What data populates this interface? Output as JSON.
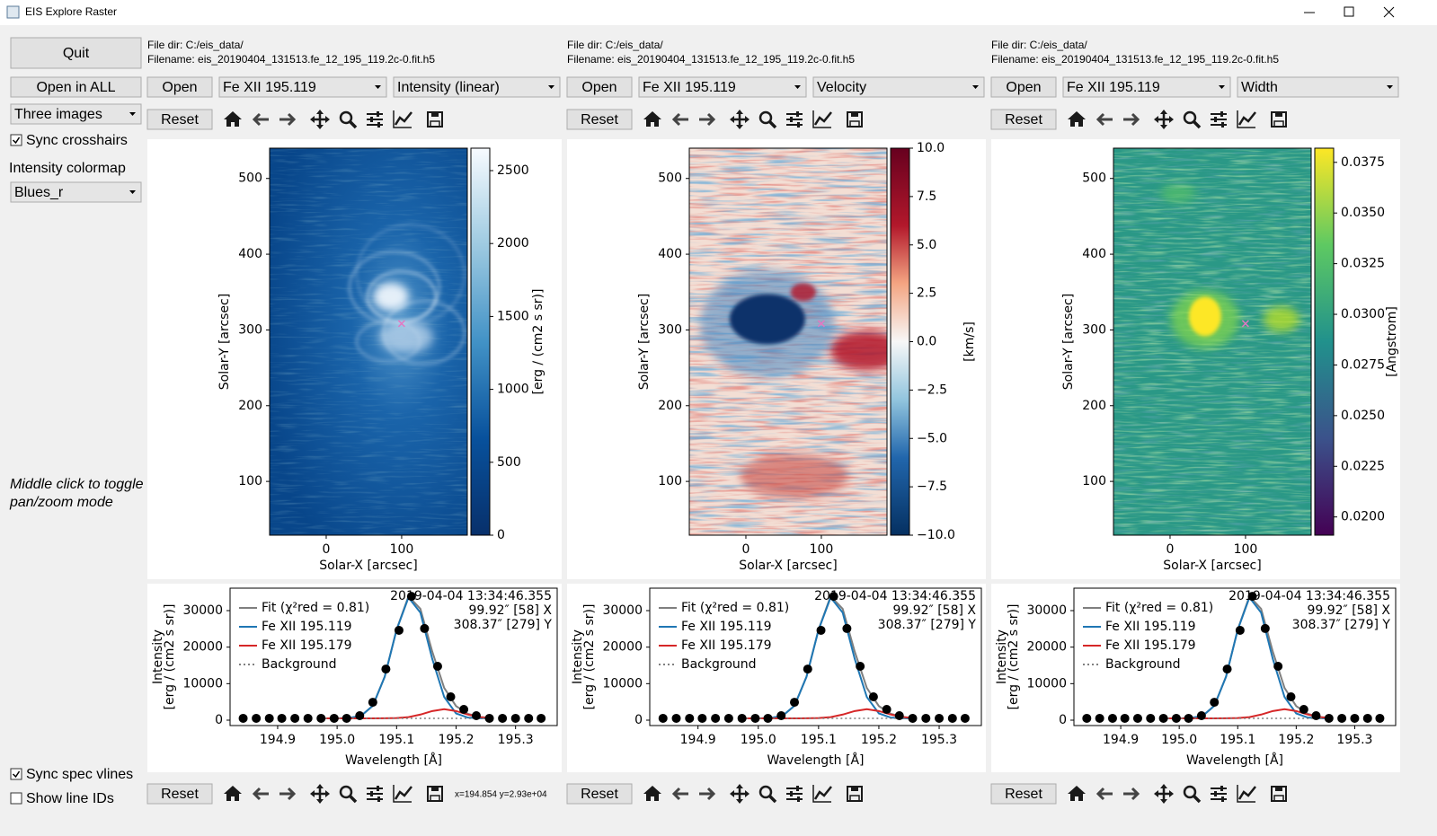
{
  "window": {
    "title": "EIS Explore Raster"
  },
  "sidebar": {
    "quit": "Quit",
    "open_all": "Open in ALL",
    "layout": "Three images",
    "sync_crosshairs": {
      "label": "Sync crosshairs",
      "checked": true
    },
    "colormap_label": "Intensity colormap",
    "colormap": "Blues_r",
    "hint": [
      "Middle click to toggle",
      "pan/zoom mode"
    ],
    "sync_spec": {
      "label": "Sync spec vlines",
      "checked": true
    },
    "line_ids": {
      "label": "Show line IDs",
      "checked": false
    }
  },
  "buttons": {
    "open": "Open",
    "reset": "Reset"
  },
  "status": "x=194.854 y=2.93e+04",
  "panels": [
    {
      "file_dir": "File dir: C:/eis_data/",
      "filename": "Filename: eis_20190404_131513.fe_12_195_119.2c-0.fit.h5",
      "line": "Fe XII 195.119",
      "measure": "Intensity (linear)"
    },
    {
      "file_dir": "File dir: C:/eis_data/",
      "filename": "Filename: eis_20190404_131513.fe_12_195_119.2c-0.fit.h5",
      "line": "Fe XII 195.119",
      "measure": "Velocity"
    },
    {
      "file_dir": "File dir: C:/eis_data/",
      "filename": "Filename: eis_20190404_131513.fe_12_195_119.2c-0.fit.h5",
      "line": "Fe XII 195.119",
      "measure": "Width"
    }
  ],
  "chart_data": [
    {
      "type": "image",
      "xlabel": "Solar-X [arcsec]",
      "ylabel": "Solar-Y [arcsec]",
      "xlim": [
        -75,
        187
      ],
      "ylim": [
        29,
        540
      ],
      "xticks": [
        0,
        100
      ],
      "yticks": [
        100,
        200,
        300,
        400,
        500
      ],
      "colormap": "Blues_r",
      "colorbar": {
        "label": "[erg / (cm2 s sr)]",
        "lim": [
          0,
          2654
        ],
        "ticks": [
          0,
          500,
          1000,
          1500,
          2000,
          2500
        ]
      },
      "crosshair": {
        "x": 99.92,
        "y": 308.37,
        "color": "#e377c2"
      }
    },
    {
      "type": "image",
      "xlabel": "Solar-X [arcsec]",
      "ylabel": "Solar-Y [arcsec]",
      "xlim": [
        -75,
        187
      ],
      "ylim": [
        29,
        540
      ],
      "xticks": [
        0,
        100
      ],
      "yticks": [
        100,
        200,
        300,
        400,
        500
      ],
      "colormap": "RdBu_r",
      "colorbar": {
        "label": "[km/s]",
        "lim": [
          -10,
          10
        ],
        "ticks": [
          {
            "value": 10,
            "label": "10.0"
          },
          {
            "value": 7.5,
            "label": "7.5"
          },
          {
            "value": 5,
            "label": "5.0"
          },
          {
            "value": 2.5,
            "label": "2.5"
          },
          {
            "value": 0,
            "label": "0.0"
          },
          {
            "value": -2.5,
            "label": "−2.5"
          },
          {
            "value": -5,
            "label": "−5.0"
          },
          {
            "value": -7.5,
            "label": "−7.5"
          },
          {
            "value": -10,
            "label": "−10.0"
          }
        ]
      },
      "crosshair": {
        "x": 99.92,
        "y": 308.37,
        "color": "#e377c2"
      }
    },
    {
      "type": "image",
      "xlabel": "Solar-X [arcsec]",
      "ylabel": "Solar-Y [arcsec]",
      "xlim": [
        -75,
        187
      ],
      "ylim": [
        29,
        540
      ],
      "xticks": [
        0,
        100
      ],
      "yticks": [
        100,
        200,
        300,
        400,
        500
      ],
      "colormap": "viridis",
      "colorbar": {
        "label": "[Angstrom]",
        "lim": [
          0.0191,
          0.0382
        ],
        "ticks": [
          {
            "value": 0.0375,
            "label": "0.0375"
          },
          {
            "value": 0.035,
            "label": "0.0350"
          },
          {
            "value": 0.0325,
            "label": "0.0325"
          },
          {
            "value": 0.03,
            "label": "0.0300"
          },
          {
            "value": 0.0275,
            "label": "0.0275"
          },
          {
            "value": 0.025,
            "label": "0.0250"
          },
          {
            "value": 0.0225,
            "label": "0.0225"
          },
          {
            "value": 0.02,
            "label": "0.0200"
          }
        ]
      },
      "crosshair": {
        "x": 99.92,
        "y": 308.37,
        "color": "#e377c2"
      }
    },
    {
      "type": "line",
      "xlabel": "Wavelength [Å]",
      "ylabel": [
        "Intensity",
        "[erg / (cm2 s sr)]"
      ],
      "annotation": [
        "2019-04-04 13:34:46.355",
        "99.92″ [58] X",
        "308.37″ [279] Y"
      ],
      "xlim": [
        194.82,
        195.37
      ],
      "ylim": [
        -1475,
        36150
      ],
      "xticks": [
        194.9,
        {
          "value": 195,
          "label": "195.0"
        },
        195.1,
        195.2,
        195.3
      ],
      "yticks": [
        0,
        10000,
        20000,
        30000
      ],
      "x": [
        194.98,
        195.0,
        195.02,
        195.04,
        195.06,
        195.08,
        195.1,
        195.12,
        195.14,
        195.16,
        195.18,
        195.2,
        195.22,
        195.24,
        195.26
      ],
      "series": [
        {
          "name": "Fit (χ²red = 0.81)",
          "color": "#7f7f7f",
          "style": "solid",
          "values": [
            500,
            507,
            582,
            1161,
            3931,
            11900,
            24821,
            33938,
            30488,
            18760,
            8850,
            3850,
            1728,
            856,
            571
          ]
        },
        {
          "name": "Fe XII 195.119",
          "color": "#1f77b4",
          "style": "solid",
          "values": [
            500,
            507,
            582,
            1161,
            3930,
            11890,
            24750,
            33600,
            29460,
            16760,
            6350,
            1850,
            700,
            518,
            500
          ]
        },
        {
          "name": "Fe XII 195.179",
          "color": "#d62728",
          "style": "solid",
          "values": [
            500,
            500,
            500,
            500,
            501,
            510,
            571,
            838,
            1528,
            2500,
            3000,
            2500,
            1528,
            838,
            571
          ]
        },
        {
          "name": "Background",
          "color": "#7f7f7f",
          "style": "dotted",
          "values": [
            500,
            500,
            500,
            500,
            500,
            500,
            500,
            500,
            500,
            500,
            500,
            500,
            500,
            500,
            500
          ]
        }
      ],
      "points": {
        "color": "#000000",
        "x": [
          194.842,
          194.864,
          194.886,
          194.907,
          194.929,
          194.951,
          194.973,
          194.995,
          195.016,
          195.038,
          195.06,
          195.082,
          195.104,
          195.125,
          195.147,
          195.169,
          195.191,
          195.213,
          195.234,
          195.256,
          195.278,
          195.3,
          195.322,
          195.343
        ],
        "values": [
          500,
          500,
          500,
          500,
          500,
          500,
          500,
          500,
          500,
          1230,
          4900,
          14000,
          24600,
          33900,
          25100,
          14750,
          6400,
          2950,
          1230,
          500,
          500,
          500,
          500,
          500
        ]
      }
    }
  ]
}
